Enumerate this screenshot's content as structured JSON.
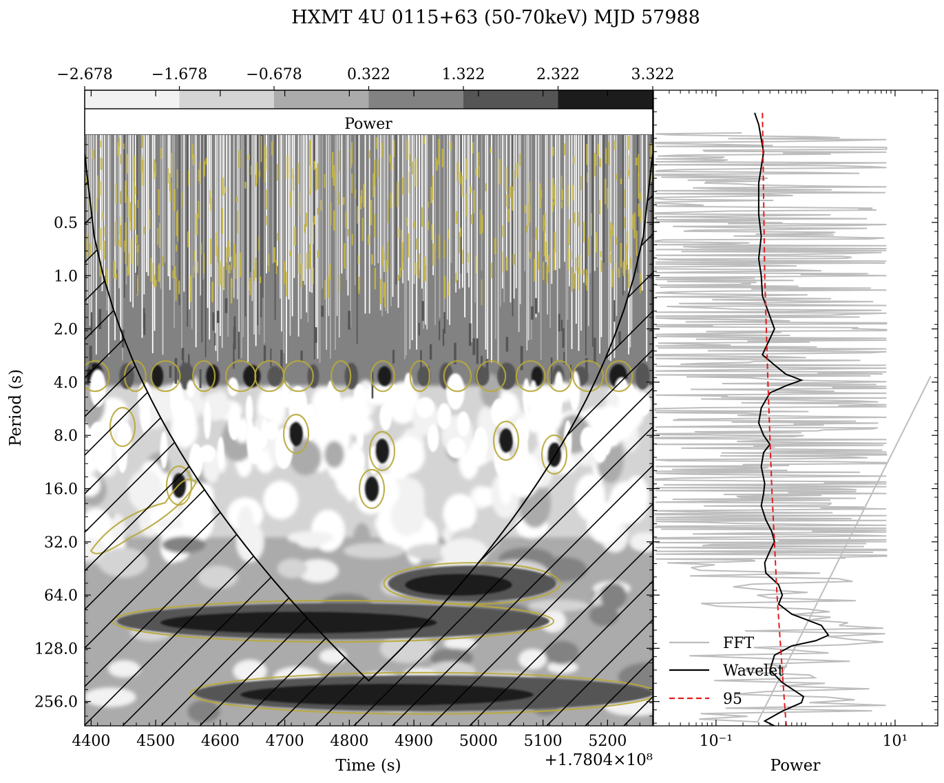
{
  "figure_title": "HXMT 4U 0115+63 (50-70keV) MJD 57988",
  "chart_data": [
    {
      "type": "heatmap",
      "panel": "wavelet-power-spectrum",
      "xlabel": "Time (s)",
      "x_offset_label": "+1.7804×10⁸",
      "xlim": [
        4390,
        5270
      ],
      "xticks": [
        4400,
        4500,
        4600,
        4700,
        4800,
        4900,
        5000,
        5100,
        5200
      ],
      "ylabel": "Period (s)",
      "yscale": "log2",
      "ylim_top_bottom": [
        0.12,
        400
      ],
      "yticks": [
        "0.5",
        "1.0",
        "2.0",
        "4.0",
        "8.0",
        "16.0",
        "32.0",
        "64.0",
        "128.0",
        "256.0"
      ],
      "colorbar": {
        "label": "Power",
        "ticks": [
          "−2.678",
          "−1.678",
          "−0.678",
          "0.322",
          "1.322",
          "2.322",
          "3.322"
        ],
        "levels": [
          -2.678,
          -1.678,
          -0.678,
          0.322,
          1.322,
          2.322,
          3.322
        ],
        "colors": [
          "#f2f2f2",
          "#d4d4d4",
          "#ababab",
          "#828282",
          "#555555",
          "#1c1c1c"
        ]
      },
      "significance_contour_color": "#b8a83a",
      "cone_of_influence": "hatched",
      "features": [
        {
          "period_s": 3.7,
          "description": "pulse period band"
        },
        {
          "period_s": 90,
          "x_range": [
            4440,
            5110
          ]
        },
        {
          "period_s": 55,
          "x_range": [
            4860,
            5120
          ]
        },
        {
          "period_s": 230,
          "x_range": [
            4560,
            5270
          ]
        }
      ]
    },
    {
      "type": "line",
      "panel": "global-power",
      "xlabel": "Power",
      "xscale": "log",
      "xlim": [
        0.02,
        30
      ],
      "xticks": [
        "10⁻¹",
        "10¹"
      ],
      "legend": "lower-left",
      "series": [
        {
          "name": "FFT",
          "color": "#bdbdbd"
        },
        {
          "name": "Wavelet",
          "color": "#000000",
          "points": [
            [
              0.27,
              0.12
            ],
            [
              0.3,
              0.14
            ],
            [
              0.34,
              0.2
            ],
            [
              0.3,
              0.3
            ],
            [
              0.3,
              0.45
            ],
            [
              0.32,
              0.6
            ],
            [
              0.3,
              0.8
            ],
            [
              0.32,
              1.0
            ],
            [
              0.33,
              1.3
            ],
            [
              0.4,
              1.7
            ],
            [
              0.45,
              2.0
            ],
            [
              0.38,
              2.4
            ],
            [
              0.33,
              2.8
            ],
            [
              0.45,
              3.2
            ],
            [
              0.6,
              3.6
            ],
            [
              0.9,
              3.9
            ],
            [
              0.6,
              4.2
            ],
            [
              0.4,
              4.6
            ],
            [
              0.32,
              5.6
            ],
            [
              0.3,
              6.8
            ],
            [
              0.34,
              8.0
            ],
            [
              0.4,
              9.0
            ],
            [
              0.34,
              10.0
            ],
            [
              0.32,
              12.0
            ],
            [
              0.35,
              15.0
            ],
            [
              0.34,
              17.0
            ],
            [
              0.32,
              20.0
            ],
            [
              0.36,
              24.0
            ],
            [
              0.42,
              28.0
            ],
            [
              0.45,
              32.0
            ],
            [
              0.4,
              36.0
            ],
            [
              0.35,
              42.0
            ],
            [
              0.36,
              48.0
            ],
            [
              0.5,
              56.0
            ],
            [
              0.55,
              64.0
            ],
            [
              0.5,
              72.0
            ],
            [
              0.7,
              82.0
            ],
            [
              1.5,
              95.0
            ],
            [
              1.8,
              108.0
            ],
            [
              1.3,
              116.0
            ],
            [
              0.7,
              124.0
            ],
            [
              0.45,
              140.0
            ],
            [
              0.4,
              170.0
            ],
            [
              0.55,
              200.0
            ],
            [
              0.95,
              240.0
            ],
            [
              0.9,
              260.0
            ],
            [
              0.55,
              290.0
            ],
            [
              0.35,
              330.0
            ],
            [
              0.55,
              370.0
            ],
            [
              0.8,
              400.0
            ]
          ]
        },
        {
          "name": "95",
          "color": "#e41a1c",
          "style": "dashed",
          "points": [
            [
              0.33,
              0.12
            ],
            [
              0.35,
              1.0
            ],
            [
              0.38,
              4.0
            ],
            [
              0.42,
              16.0
            ],
            [
              0.48,
              64.0
            ],
            [
              0.58,
              256.0
            ],
            [
              0.62,
              400.0
            ]
          ]
        }
      ]
    }
  ]
}
